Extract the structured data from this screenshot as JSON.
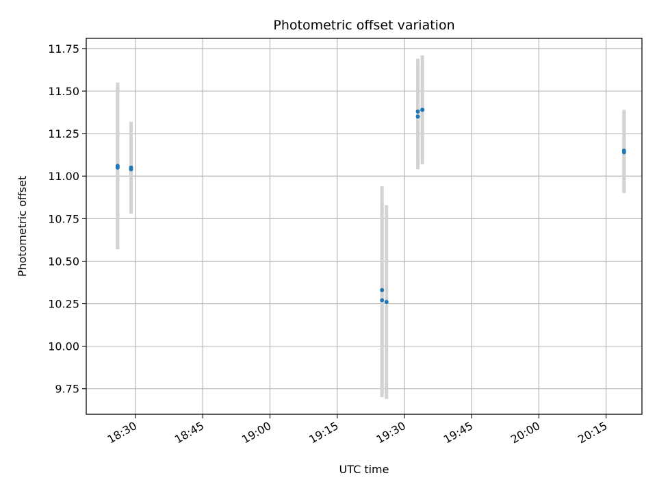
{
  "chart_data": {
    "type": "scatter",
    "title": "Photometric offset variation",
    "xlabel": "UTC time",
    "ylabel": "Photometric offset",
    "x_axis": "time",
    "xlim": [
      "18:19",
      "20:23"
    ],
    "ylim": [
      9.6,
      11.81
    ],
    "x_ticks": [
      "18:30",
      "18:45",
      "19:00",
      "19:15",
      "19:30",
      "19:45",
      "20:00",
      "20:15"
    ],
    "y_ticks": [
      9.75,
      10.0,
      10.25,
      10.5,
      10.75,
      11.0,
      11.25,
      11.5,
      11.75
    ],
    "y_tick_labels": [
      "9.75",
      "10.00",
      "10.25",
      "10.50",
      "10.75",
      "11.00",
      "11.25",
      "11.50",
      "11.75"
    ],
    "grid": true,
    "marker_color": "#1f77b4",
    "errorbar_color": "#d3d3d3",
    "points": [
      {
        "time": "18:26",
        "y": 11.06,
        "err": 0.49
      },
      {
        "time": "18:26",
        "y": 11.05,
        "err": 0.48
      },
      {
        "time": "18:29",
        "y": 11.05,
        "err": 0.27
      },
      {
        "time": "18:29",
        "y": 11.04,
        "err": 0.26
      },
      {
        "time": "19:25",
        "y": 10.33,
        "err": 0.61
      },
      {
        "time": "19:25",
        "y": 10.27,
        "err": 0.57
      },
      {
        "time": "19:26",
        "y": 10.26,
        "err": 0.57
      },
      {
        "time": "19:33",
        "y": 11.35,
        "err": 0.31
      },
      {
        "time": "19:33",
        "y": 11.38,
        "err": 0.31
      },
      {
        "time": "19:34",
        "y": 11.39,
        "err": 0.32
      },
      {
        "time": "19:34",
        "y": 11.39,
        "err": 0.31
      },
      {
        "time": "20:19",
        "y": 11.15,
        "err": 0.24
      },
      {
        "time": "20:19",
        "y": 11.14,
        "err": 0.24
      }
    ]
  }
}
